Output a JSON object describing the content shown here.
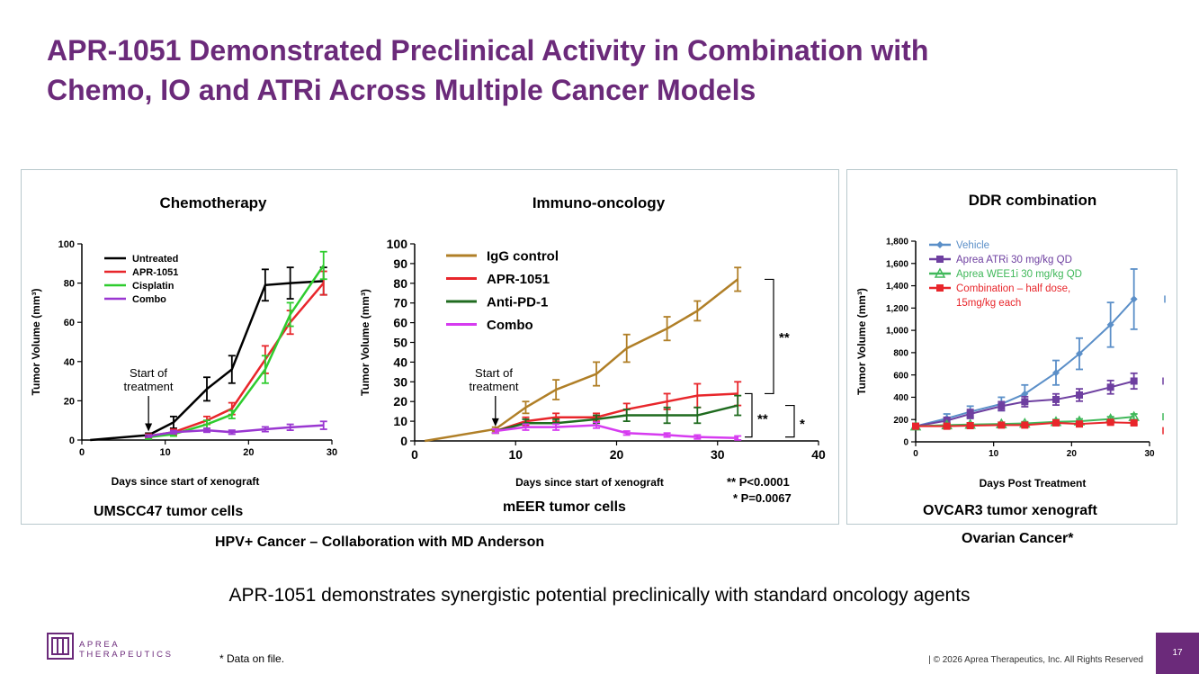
{
  "title_lines": [
    "APR-1051 Demonstrated Preclinical Activity in Combination with",
    "Chemo, IO and ATRi Across Multiple Cancer Models"
  ],
  "tagline": "APR-1051 demonstrates synergistic potential preclinically with standard oncology agents",
  "footnote": "* Data on file.",
  "copyright": "| © 2026 Aprea Therapeutics, Inc. All Rights Reserved",
  "page_number": "17",
  "logo": {
    "line1": "APREA",
    "line2": "THERAPEUTICS"
  },
  "captions": {
    "umscc": "UMSCC47 tumor cells",
    "meer": "mEER tumor cells",
    "ovcar": "OVCAR3 tumor xenograft",
    "hpv": "HPV+ Cancer – Collaboration with MD Anderson",
    "ovarian": "Ovarian Cancer*"
  },
  "start_annotation": "Start of\ntreatment",
  "stats": {
    "p1": "** P<0.0001",
    "p2": "* P=0.0067",
    "sig_double": "**",
    "sig_single": "*"
  },
  "colors": {
    "title": "#6b2a7a",
    "untreated": "#000000",
    "apr": "#e8262b",
    "cisplatin": "#2ecc2e",
    "combo": "#9a37d1",
    "igg": "#b07f27",
    "antipd1": "#1f6b1f",
    "combo_io": "#d63bf0",
    "vehicle": "#5b8fc8",
    "atri": "#6e3fa0",
    "wee1": "#40b85a",
    "combination": "#e8262b",
    "panel_border": "#b8c8cc"
  },
  "chart_data": [
    {
      "id": "chemo",
      "type": "line",
      "title": "Chemotherapy",
      "xlabel": "Days since start of xenograft",
      "ylabel": "Tumor Volume (mm³)",
      "xlim": [
        0,
        30
      ],
      "ylim": [
        0,
        100
      ],
      "xticks": [
        0,
        10,
        20,
        30
      ],
      "yticks": [
        0,
        20,
        40,
        60,
        80,
        100
      ],
      "series": [
        {
          "name": "Untreated",
          "color": "#000000",
          "x": [
            1,
            8,
            11,
            15,
            18,
            22,
            25,
            29
          ],
          "y": [
            0,
            2.5,
            9,
            26,
            36,
            79,
            80,
            81
          ],
          "err": [
            0,
            1,
            3,
            6,
            7,
            8,
            8,
            7
          ]
        },
        {
          "name": "APR-1051",
          "color": "#e8262b",
          "x": [
            8,
            11,
            15,
            18,
            22,
            25,
            29
          ],
          "y": [
            2,
            4,
            10,
            16,
            41,
            60,
            80
          ],
          "err": [
            1,
            1.5,
            2,
            3,
            7,
            6,
            6
          ]
        },
        {
          "name": "Cisplatin",
          "color": "#2ecc2e",
          "x": [
            8,
            11,
            15,
            18,
            22,
            25,
            29
          ],
          "y": [
            1.5,
            3,
            8,
            13,
            36,
            64,
            89
          ],
          "err": [
            1,
            1,
            2,
            2,
            7,
            6,
            7
          ]
        },
        {
          "name": "Combo",
          "color": "#9a37d1",
          "x": [
            8,
            11,
            15,
            18,
            22,
            25,
            29
          ],
          "y": [
            2,
            4,
            5,
            4,
            5.5,
            6.5,
            7.5
          ],
          "err": [
            0.5,
            0.8,
            1,
            1,
            1.2,
            1.5,
            2
          ]
        }
      ]
    },
    {
      "id": "io",
      "type": "line",
      "title": "Immuno-oncology",
      "xlabel": "Days since start of xenograft",
      "ylabel": "Tumor Volume (mm³)",
      "xlim": [
        0,
        40
      ],
      "ylim": [
        0,
        100
      ],
      "xticks": [
        0,
        10,
        20,
        30,
        40
      ],
      "yticks": [
        0,
        10,
        20,
        30,
        40,
        50,
        60,
        70,
        80,
        90,
        100
      ],
      "series": [
        {
          "name": "IgG control",
          "color": "#b07f27",
          "x": [
            1,
            8,
            11,
            14,
            18,
            21,
            25,
            28,
            32
          ],
          "y": [
            0,
            6,
            17,
            26,
            34,
            47,
            57,
            66,
            82
          ],
          "err": [
            0,
            1,
            3,
            5,
            6,
            7,
            6,
            5,
            6
          ]
        },
        {
          "name": "APR-1051",
          "color": "#e8262b",
          "x": [
            8,
            11,
            14,
            18,
            21,
            25,
            28,
            32
          ],
          "y": [
            5,
            10,
            12,
            12,
            16,
            20,
            23,
            24
          ],
          "err": [
            1,
            2,
            2,
            2,
            3,
            4,
            6,
            6
          ]
        },
        {
          "name": "Anti-PD-1",
          "color": "#1f6b1f",
          "x": [
            8,
            11,
            14,
            18,
            21,
            25,
            28,
            32
          ],
          "y": [
            5,
            9,
            9,
            11,
            13,
            13,
            13,
            18
          ],
          "err": [
            1,
            2,
            2,
            2,
            3,
            4,
            4,
            5
          ]
        },
        {
          "name": "Combo",
          "color": "#d63bf0",
          "x": [
            8,
            11,
            14,
            18,
            21,
            25,
            28,
            32
          ],
          "y": [
            5,
            7,
            7,
            8,
            4,
            3,
            2,
            1.5
          ],
          "err": [
            1,
            1.5,
            1.5,
            1.5,
            1,
            1,
            1,
            1
          ]
        }
      ]
    },
    {
      "id": "ddr",
      "type": "line",
      "title": "DDR combination",
      "xlabel": "Days Post Treatment",
      "ylabel": "Tumor Volume (mm³)",
      "xlim": [
        0,
        30
      ],
      "ylim": [
        0,
        1800
      ],
      "xticks": [
        0,
        10,
        20,
        30
      ],
      "yticks": [
        0,
        200,
        400,
        600,
        800,
        1000,
        1200,
        1400,
        1600,
        1800
      ],
      "ytick_labels": [
        "0",
        "200",
        "400",
        "600",
        "800",
        "1,000",
        "1,200",
        "1,400",
        "1,600",
        "1,800"
      ],
      "series": [
        {
          "name": "Vehicle",
          "color": "#5b8fc8",
          "marker": "diamond",
          "x": [
            0,
            4,
            7,
            11,
            14,
            18,
            21,
            25,
            28
          ],
          "y": [
            140,
            210,
            270,
            340,
            430,
            620,
            790,
            1050,
            1280
          ],
          "err": [
            20,
            40,
            50,
            60,
            80,
            110,
            140,
            200,
            270
          ]
        },
        {
          "name": "Aprea ATRi 30 mg/kg QD",
          "color": "#6e3fa0",
          "marker": "square",
          "x": [
            0,
            4,
            7,
            11,
            14,
            18,
            21,
            25,
            28
          ],
          "y": [
            140,
            190,
            250,
            320,
            360,
            380,
            420,
            490,
            545
          ],
          "err": [
            15,
            30,
            40,
            40,
            45,
            50,
            55,
            60,
            70
          ]
        },
        {
          "name": "Aprea WEE1i 30 mg/kg QD",
          "color": "#40b85a",
          "marker": "triangle",
          "x": [
            0,
            4,
            7,
            11,
            14,
            18,
            21,
            25,
            28
          ],
          "y": [
            140,
            150,
            155,
            160,
            165,
            180,
            185,
            205,
            225
          ],
          "err": [
            10,
            10,
            15,
            15,
            15,
            20,
            20,
            20,
            25
          ]
        },
        {
          "name": "Combination – half dose, 15mg/kg each",
          "color": "#e8262b",
          "marker": "square",
          "x": [
            0,
            4,
            7,
            11,
            14,
            18,
            21,
            25,
            28
          ],
          "y": [
            140,
            140,
            145,
            150,
            150,
            170,
            160,
            175,
            170
          ],
          "err": [
            10,
            10,
            10,
            10,
            10,
            15,
            15,
            15,
            15
          ]
        }
      ]
    }
  ]
}
